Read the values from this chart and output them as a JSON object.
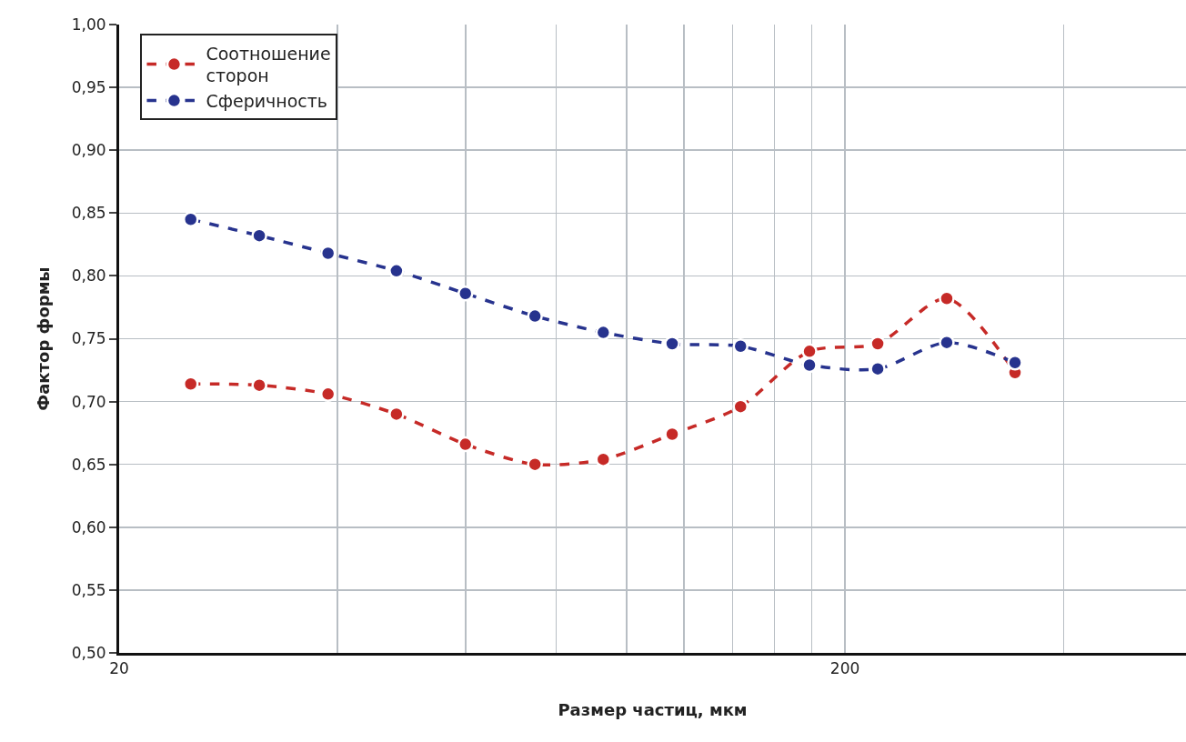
{
  "chart_data": {
    "type": "line",
    "xlabel": "Размер частиц, мкм",
    "ylabel": "Фактор формы",
    "x": [
      25.1,
      31.2,
      38.8,
      48.2,
      60.0,
      74.8,
      92.9,
      115.6,
      143.6,
      178.7,
      221.9,
      276.2,
      343
    ],
    "series": [
      {
        "name": "Соотношение\nсторон",
        "color": "#c62a27",
        "values": [
          0.714,
          0.713,
          0.706,
          0.69,
          0.666,
          0.65,
          0.654,
          0.674,
          0.696,
          0.74,
          0.746,
          0.782,
          0.723
        ]
      },
      {
        "name": "Сферичность",
        "color": "#27338e",
        "values": [
          0.845,
          0.832,
          0.818,
          0.804,
          0.786,
          0.768,
          0.755,
          0.746,
          0.744,
          0.729,
          0.726,
          0.747,
          0.731
        ]
      }
    ],
    "log": "x",
    "xlim": [
      20,
      590
    ],
    "xticks": [
      20,
      {
        "value": 40,
        "label": null
      },
      {
        "value": 60,
        "label": null
      },
      {
        "value": 80,
        "label": null
      },
      {
        "value": 100,
        "label": null
      },
      {
        "value": 120,
        "label": null
      },
      {
        "value": 140,
        "label": null
      },
      {
        "value": 160,
        "label": null
      },
      {
        "value": 180,
        "label": null
      },
      200,
      {
        "value": 400,
        "label": null
      }
    ],
    "ylim": [
      0.5,
      1.0
    ],
    "yticks": [
      {
        "value": 0.5,
        "label": "0,50"
      },
      {
        "value": 0.55,
        "label": "0,55"
      },
      {
        "value": 0.6,
        "label": "0,60"
      },
      {
        "value": 0.65,
        "label": "0,65"
      },
      {
        "value": 0.7,
        "label": "0,70"
      },
      {
        "value": 0.75,
        "label": "0,75"
      },
      {
        "value": 0.8,
        "label": "0,80"
      },
      {
        "value": 0.85,
        "label": "0,85"
      },
      {
        "value": 0.9,
        "label": "0,90"
      },
      {
        "value": 0.95,
        "label": "0,95"
      },
      {
        "value": 1.0,
        "label": "1,00"
      }
    ],
    "grid": true,
    "legend": "top left",
    "marker": "circle",
    "line_style": "dashed"
  }
}
